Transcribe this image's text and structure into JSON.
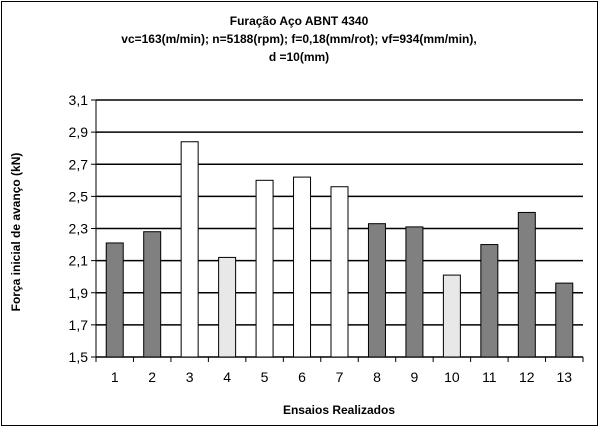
{
  "chart_data": {
    "type": "bar",
    "title": [
      "Furação Aço ABNT 4340",
      "vc=163(m/min); n=5188(rpm); f=0,18(mm/rot);   vf=934(mm/min),",
      "d =10(mm)"
    ],
    "xlabel": "Ensaios Realizados",
    "ylabel": "Força inicial de avanço (kN)",
    "categories": [
      "1",
      "2",
      "3",
      "4",
      "5",
      "6",
      "7",
      "8",
      "9",
      "10",
      "11",
      "12",
      "13"
    ],
    "values": [
      2.21,
      2.28,
      2.84,
      2.12,
      2.6,
      2.62,
      2.56,
      2.33,
      2.31,
      2.01,
      2.2,
      2.4,
      1.96
    ],
    "bar_colors": [
      "#808080",
      "#808080",
      "#ffffff",
      "#e8e8e8",
      "#ffffff",
      "#ffffff",
      "#ffffff",
      "#808080",
      "#808080",
      "#e8e8e8",
      "#808080",
      "#808080",
      "#808080"
    ],
    "ylim": [
      1.5,
      3.1
    ],
    "yticks": [
      "1,5",
      "1,7",
      "1,9",
      "2,1",
      "2,3",
      "2,5",
      "2,7",
      "2,9",
      "3,1"
    ],
    "grid": true,
    "legend": "none"
  }
}
